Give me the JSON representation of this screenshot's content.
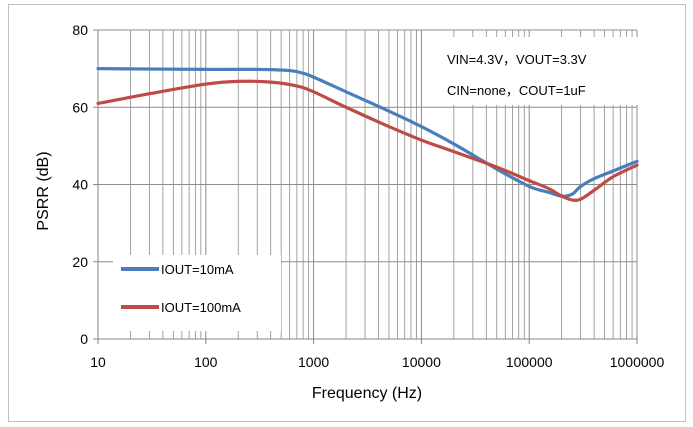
{
  "chart_data": {
    "type": "line",
    "xscale": "log",
    "xlim": [
      10,
      1000000
    ],
    "ylim": [
      0,
      80
    ],
    "xticks": [
      10,
      100,
      1000,
      10000,
      100000,
      1000000
    ],
    "yticks": [
      0,
      20,
      40,
      60,
      80
    ],
    "xtick_labels": [
      "10",
      "100",
      "1000",
      "10000",
      "100000",
      "1000000"
    ],
    "ytick_labels": [
      "0",
      "20",
      "40",
      "60",
      "80"
    ],
    "xlabel": "Frequency (Hz)",
    "ylabel": "PSRR (dB)",
    "grid": "vertical minor+major, horizontal major",
    "annotations": [
      "VIN=4.3V，VOUT=3.3V",
      "CIN=none，COUT=1uF"
    ],
    "legend_position": "bottom-left",
    "series": [
      {
        "name": "IOUT=10mA",
        "color": "#4a7ebb",
        "x": [
          10,
          100,
          300,
          600,
          800,
          1000,
          2000,
          5000,
          10000,
          20000,
          50000,
          100000,
          150000,
          200000,
          250000,
          300000,
          400000,
          600000,
          1000000
        ],
        "y": [
          70,
          69.8,
          69.8,
          69.5,
          68.8,
          67.8,
          64,
          59,
          55,
          50.5,
          44,
          39.5,
          38,
          37,
          37.5,
          39.5,
          41.5,
          43.5,
          46
        ]
      },
      {
        "name": "IOUT=100mA",
        "color": "#be4b48",
        "x": [
          10,
          30,
          100,
          200,
          400,
          700,
          1000,
          2000,
          5000,
          10000,
          20000,
          50000,
          100000,
          150000,
          200000,
          250000,
          300000,
          400000,
          600000,
          1000000
        ],
        "y": [
          61,
          63.5,
          66,
          66.7,
          66.5,
          65.5,
          64,
          60,
          55,
          51.5,
          48.5,
          44.5,
          41,
          39,
          37,
          36,
          36.2,
          38.5,
          42,
          45
        ]
      }
    ]
  }
}
